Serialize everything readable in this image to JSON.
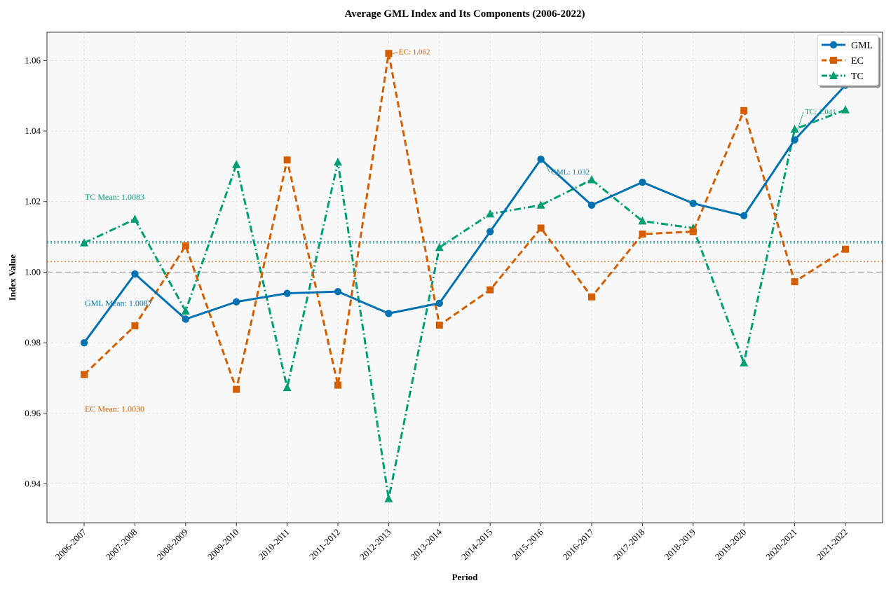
{
  "chart_data": {
    "type": "line",
    "title": "Average GML Index and Its Components (2006-2022)",
    "xlabel": "Period",
    "ylabel": "Index Value",
    "categories": [
      "2006-2007",
      "2007-2008",
      "2008-2009",
      "2009-2010",
      "2010-2011",
      "2011-2012",
      "2012-2013",
      "2013-2014",
      "2014-2015",
      "2015-2016",
      "2016-2017",
      "2017-2018",
      "2018-2019",
      "2019-2020",
      "2020-2021",
      "2021-2022"
    ],
    "ylim": [
      0.929,
      1.068
    ],
    "yticks": [
      0.94,
      0.96,
      0.98,
      1.0,
      1.02,
      1.04,
      1.06
    ],
    "ytick_labels": [
      "0.94",
      "0.96",
      "0.98",
      "1.00",
      "1.02",
      "1.04",
      "1.06"
    ],
    "grid": true,
    "legend_position": "top-right",
    "series": [
      {
        "name": "GML",
        "color": "#0072B2",
        "marker": "circle",
        "linestyle": "solid",
        "values": [
          0.98,
          0.9995,
          0.9867,
          0.9916,
          0.994,
          0.9945,
          0.9883,
          0.9912,
          1.0115,
          1.032,
          1.019,
          1.0255,
          1.0195,
          1.016,
          1.0375,
          1.053
        ]
      },
      {
        "name": "EC",
        "color": "#D55E00",
        "marker": "square",
        "linestyle": "dashed",
        "values": [
          0.971,
          0.9848,
          1.0075,
          0.9668,
          1.0318,
          0.968,
          1.062,
          0.985,
          0.995,
          1.0125,
          0.993,
          1.0108,
          1.0115,
          1.0458,
          0.9973,
          1.0065
        ]
      },
      {
        "name": "TC",
        "color": "#009E73",
        "marker": "triangle",
        "linestyle": "dashdot",
        "values": [
          1.0083,
          1.015,
          0.989,
          1.0305,
          0.9673,
          1.0312,
          0.9358,
          1.007,
          1.0165,
          1.019,
          1.0262,
          1.0145,
          1.0125,
          0.9743,
          1.0405,
          1.046
        ]
      }
    ],
    "reference_lines": [
      {
        "value": 1.0,
        "color": "#aaaaaa",
        "style": "dashed"
      },
      {
        "value": 1.0087,
        "color": "#0072B2",
        "style": "dotted"
      },
      {
        "value": 1.0083,
        "color": "#009E73",
        "style": "dotted"
      },
      {
        "value": 1.003,
        "color": "#D55E00",
        "style": "dotted"
      }
    ],
    "mean_labels": [
      {
        "text": "TC Mean: 1.0083",
        "color": "#009E73",
        "y": 1.0205
      },
      {
        "text": "GML Mean: 1.0087",
        "color": "#0072B2",
        "y": 0.9905
      },
      {
        "text": "EC Mean: 1.0030",
        "color": "#D55E00",
        "y": 0.9605
      }
    ],
    "annotations": [
      {
        "text": "EC: 1.062",
        "color": "#D55E00",
        "series": 1,
        "index": 6,
        "label_x": 6.2,
        "label_y": 1.0617
      },
      {
        "text": "GML: 1.032",
        "color": "#0072B2",
        "series": 0,
        "index": 9,
        "label_x": 9.2,
        "label_y": 1.0277
      },
      {
        "text": "TC: 1.041",
        "color": "#009E73",
        "series": 2,
        "index": 14,
        "label_x": 14.2,
        "label_y": 1.0448
      }
    ]
  }
}
